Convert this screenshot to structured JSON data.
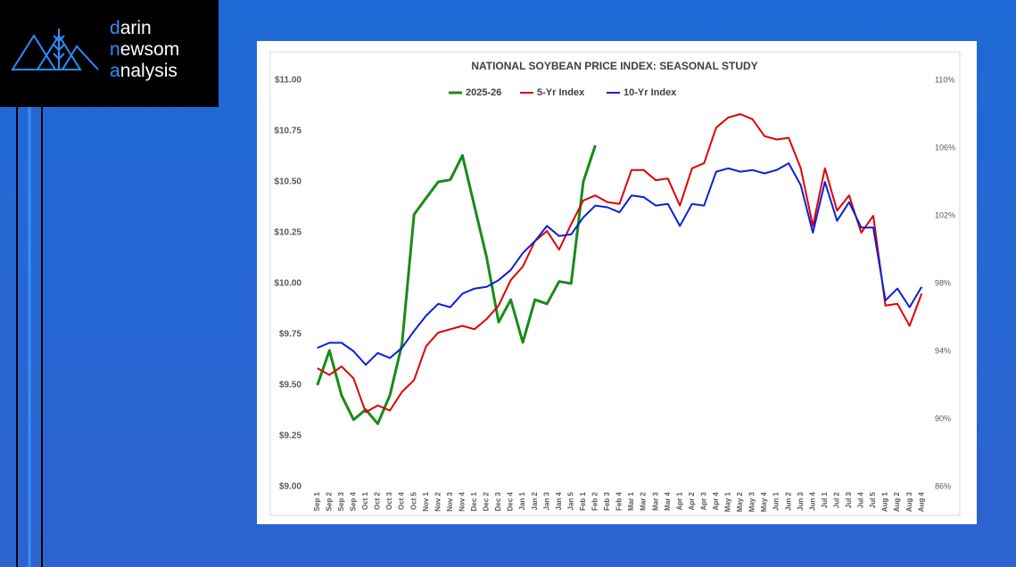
{
  "logo": {
    "lines": [
      [
        "d",
        "arin"
      ],
      [
        "n",
        "ewsom"
      ],
      [
        "a",
        "nalysis"
      ]
    ]
  },
  "chart_data": {
    "type": "line",
    "title": "NATIONAL SOYBEAN PRICE INDEX: SEASONAL STUDY",
    "categories": [
      "Sep 1",
      "Sep 2",
      "Sep 3",
      "Sep 4",
      "Oct 1",
      "Oct 2",
      "Oct 3",
      "Oct 4",
      "Oct 5",
      "Nov 1",
      "Nov 2",
      "Nov 3",
      "Nov 4",
      "Dec 1",
      "Dec 2",
      "Dec 3",
      "Dec 4",
      "Jan 1",
      "Jan 2",
      "Jan 3",
      "Jan 4",
      "Jan 5",
      "Feb 1",
      "Feb 2",
      "Feb 3",
      "Feb 4",
      "Mar 1",
      "Mar 2",
      "Mar 3",
      "Mar 4",
      "Apr 1",
      "Apr 2",
      "Apr 3",
      "Apr 4",
      "May 1",
      "May 2",
      "May 3",
      "May 4",
      "Jun 1",
      "Jun 2",
      "Jun 3",
      "Jun 4",
      "Jul 1",
      "Jul 2",
      "Jul 3",
      "Jul 4",
      "Jul 5",
      "Aug 1",
      "Aug 2",
      "Aug 3",
      "Aug 4"
    ],
    "series": [
      {
        "name": "2025-26",
        "color": "#1a8a1a",
        "values": [
          9.5,
          9.67,
          9.45,
          9.33,
          9.38,
          9.31,
          9.45,
          9.7,
          10.34,
          10.42,
          10.5,
          10.51,
          10.63,
          10.38,
          10.13,
          9.81,
          9.92,
          9.71,
          9.92,
          9.9,
          10.01,
          10.0,
          10.5,
          10.68,
          null,
          null,
          null,
          null,
          null,
          null,
          null,
          null,
          null,
          null,
          null,
          null,
          null,
          null,
          null,
          null,
          null,
          null,
          null,
          null,
          null,
          null,
          null,
          null,
          null,
          null,
          null
        ]
      },
      {
        "name": "5-Yr Index",
        "color": "#e00000",
        "axis": "y2",
        "values": [
          93.0,
          92.6,
          93.1,
          92.4,
          90.4,
          90.8,
          90.5,
          91.6,
          92.3,
          94.3,
          95.1,
          95.3,
          95.5,
          95.3,
          95.9,
          96.7,
          98.2,
          99.0,
          100.5,
          101.1,
          100.0,
          101.5,
          102.9,
          103.2,
          102.8,
          102.7,
          104.7,
          104.7,
          104.1,
          104.2,
          102.6,
          104.8,
          105.1,
          107.2,
          107.8,
          108.0,
          107.7,
          106.7,
          106.5,
          106.6,
          104.8,
          101.4,
          104.8,
          102.3,
          103.2,
          101.0,
          102.0,
          96.7,
          96.8,
          95.5,
          97.4
        ]
      },
      {
        "name": "10-Yr Index",
        "color": "#0a1fd8",
        "axis": "y2",
        "values": [
          94.2,
          94.5,
          94.5,
          94.0,
          93.2,
          93.9,
          93.6,
          94.2,
          95.2,
          96.1,
          96.8,
          96.6,
          97.4,
          97.7,
          97.8,
          98.2,
          98.8,
          99.8,
          100.5,
          101.4,
          100.8,
          100.9,
          101.9,
          102.6,
          102.5,
          102.2,
          103.2,
          103.1,
          102.6,
          102.7,
          101.4,
          102.7,
          102.6,
          104.6,
          104.8,
          104.6,
          104.7,
          104.5,
          104.7,
          105.1,
          103.8,
          101.0,
          104.0,
          101.7,
          102.8,
          101.3,
          101.3,
          97.0,
          97.7,
          96.6,
          97.8
        ]
      }
    ],
    "ylim": [
      9,
      11
    ],
    "yticks": [
      {
        "value": 9,
        "label": "$9.00"
      },
      {
        "value": 9.25,
        "label": "$9.25"
      },
      {
        "value": 9.5,
        "label": "$9.50"
      },
      {
        "value": 9.75,
        "label": "$9.75"
      },
      {
        "value": 10,
        "label": "$10.00"
      },
      {
        "value": 10.25,
        "label": "$10.25"
      },
      {
        "value": 10.5,
        "label": "$10.50"
      },
      {
        "value": 10.75,
        "label": "$10.75"
      },
      {
        "value": 11,
        "label": "$11.00"
      }
    ],
    "y2lim": [
      86,
      110
    ],
    "y2ticks": [
      {
        "value": 86,
        "label": "86%"
      },
      {
        "value": 90,
        "label": "90%"
      },
      {
        "value": 94,
        "label": "94%"
      },
      {
        "value": 98,
        "label": "98%"
      },
      {
        "value": 102,
        "label": "102%"
      },
      {
        "value": 106,
        "label": "106%"
      },
      {
        "value": 110,
        "label": "110%"
      }
    ],
    "grid": false,
    "legend": "top"
  }
}
